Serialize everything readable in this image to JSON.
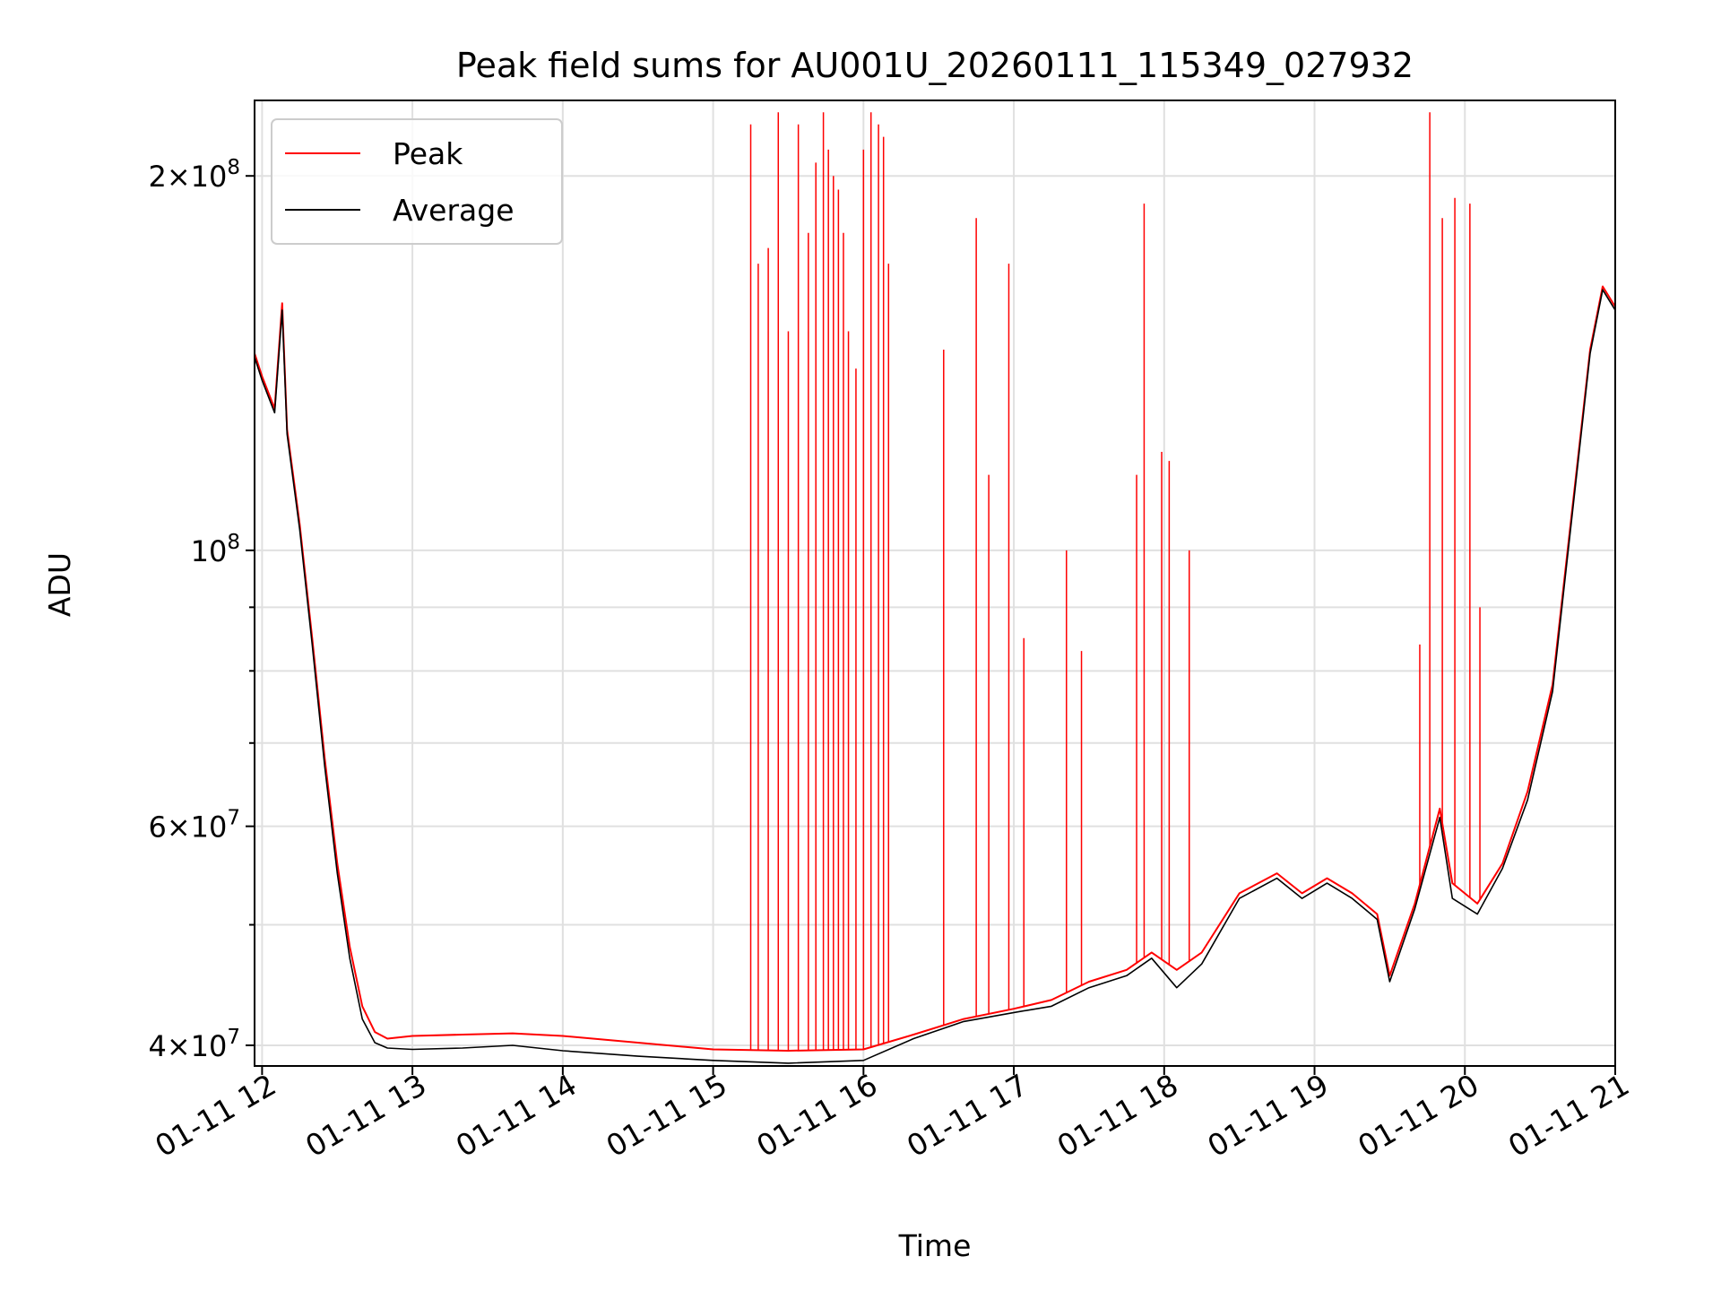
{
  "chart_data": {
    "type": "line",
    "title": "Peak field sums for AU001U_20260111_115349_027932",
    "xlabel": "Time",
    "ylabel": "ADU",
    "y_scale": "log",
    "ylim": [
      38500000,
      230000000
    ],
    "xlim": [
      "2026-01-11 11:57",
      "2026-01-11 21:00"
    ],
    "x_tick_labels": [
      "01-11 12",
      "01-11 13",
      "01-11 14",
      "01-11 15",
      "01-11 16",
      "01-11 17",
      "01-11 18",
      "01-11 19",
      "01-11 20",
      "01-11 21"
    ],
    "x_tick_values": [
      "2026-01-11 12:00",
      "2026-01-11 13:00",
      "2026-01-11 14:00",
      "2026-01-11 15:00",
      "2026-01-11 16:00",
      "2026-01-11 17:00",
      "2026-01-11 18:00",
      "2026-01-11 19:00",
      "2026-01-11 20:00",
      "2026-01-11 21:00"
    ],
    "y_major_ticks": [
      {
        "value": 40000000,
        "mantissa": "4",
        "exponent": "7"
      },
      {
        "value": 60000000,
        "mantissa": "6",
        "exponent": "7"
      },
      {
        "value": 100000000,
        "mantissa": "",
        "exponent": "8"
      },
      {
        "value": 200000000,
        "mantissa": "2",
        "exponent": "8"
      }
    ],
    "y_minor_ticks": [
      50000000,
      70000000,
      80000000,
      90000000
    ],
    "grid": true,
    "legend_position": "upper left",
    "series": [
      {
        "name": "Peak",
        "color": "#ff0000",
        "style": "line",
        "x": [
          "2026-01-11 11:57",
          "2026-01-11 12:00",
          "2026-01-11 12:05",
          "2026-01-11 12:08",
          "2026-01-11 12:10",
          "2026-01-11 12:15",
          "2026-01-11 12:20",
          "2026-01-11 12:25",
          "2026-01-11 12:30",
          "2026-01-11 12:35",
          "2026-01-11 12:40",
          "2026-01-11 12:45",
          "2026-01-11 12:50",
          "2026-01-11 13:00",
          "2026-01-11 13:20",
          "2026-01-11 13:40",
          "2026-01-11 14:00",
          "2026-01-11 14:30",
          "2026-01-11 15:00",
          "2026-01-11 15:30",
          "2026-01-11 16:00",
          "2026-01-11 16:20",
          "2026-01-11 16:40",
          "2026-01-11 17:00",
          "2026-01-11 17:15",
          "2026-01-11 17:30",
          "2026-01-11 17:45",
          "2026-01-11 17:55",
          "2026-01-11 18:05",
          "2026-01-11 18:15",
          "2026-01-11 18:30",
          "2026-01-11 18:45",
          "2026-01-11 18:55",
          "2026-01-11 19:05",
          "2026-01-11 19:15",
          "2026-01-11 19:25",
          "2026-01-11 19:30",
          "2026-01-11 19:40",
          "2026-01-11 19:50",
          "2026-01-11 19:55",
          "2026-01-11 20:05",
          "2026-01-11 20:15",
          "2026-01-11 20:25",
          "2026-01-11 20:35",
          "2026-01-11 20:40",
          "2026-01-11 20:45",
          "2026-01-11 20:50",
          "2026-01-11 20:55",
          "2026-01-11 21:00"
        ],
        "y": [
          144000000,
          138000000,
          130000000,
          158000000,
          125000000,
          105000000,
          85000000,
          68000000,
          56000000,
          48000000,
          43000000,
          41000000,
          40500000,
          40700000,
          40800000,
          40900000,
          40700000,
          40200000,
          39700000,
          39600000,
          39700000,
          40800000,
          42000000,
          42800000,
          43500000,
          45000000,
          46000000,
          47500000,
          46000000,
          47500000,
          53000000,
          55000000,
          53000000,
          54500000,
          53000000,
          51000000,
          45500000,
          52000000,
          62000000,
          54000000,
          52000000,
          56000000,
          64000000,
          78000000,
          96000000,
          118000000,
          145000000,
          163000000,
          157000000
        ]
      },
      {
        "name": "Average",
        "color": "#000000",
        "style": "line",
        "x": [
          "2026-01-11 11:57",
          "2026-01-11 12:00",
          "2026-01-11 12:05",
          "2026-01-11 12:08",
          "2026-01-11 12:10",
          "2026-01-11 12:15",
          "2026-01-11 12:20",
          "2026-01-11 12:25",
          "2026-01-11 12:30",
          "2026-01-11 12:35",
          "2026-01-11 12:40",
          "2026-01-11 12:45",
          "2026-01-11 12:50",
          "2026-01-11 13:00",
          "2026-01-11 13:20",
          "2026-01-11 13:40",
          "2026-01-11 14:00",
          "2026-01-11 14:30",
          "2026-01-11 15:00",
          "2026-01-11 15:30",
          "2026-01-11 16:00",
          "2026-01-11 16:20",
          "2026-01-11 16:40",
          "2026-01-11 17:00",
          "2026-01-11 17:15",
          "2026-01-11 17:30",
          "2026-01-11 17:45",
          "2026-01-11 17:55",
          "2026-01-11 18:05",
          "2026-01-11 18:15",
          "2026-01-11 18:30",
          "2026-01-11 18:45",
          "2026-01-11 18:55",
          "2026-01-11 19:05",
          "2026-01-11 19:15",
          "2026-01-11 19:25",
          "2026-01-11 19:30",
          "2026-01-11 19:40",
          "2026-01-11 19:50",
          "2026-01-11 19:55",
          "2026-01-11 20:05",
          "2026-01-11 20:15",
          "2026-01-11 20:25",
          "2026-01-11 20:35",
          "2026-01-11 20:40",
          "2026-01-11 20:45",
          "2026-01-11 20:50",
          "2026-01-11 20:55",
          "2026-01-11 21:00"
        ],
        "y": [
          143000000,
          137000000,
          129000000,
          156000000,
          124000000,
          104000000,
          84000000,
          67000000,
          55000000,
          47000000,
          42000000,
          40200000,
          39800000,
          39700000,
          39800000,
          40000000,
          39600000,
          39200000,
          38900000,
          38700000,
          38900000,
          40500000,
          41800000,
          42500000,
          43000000,
          44500000,
          45500000,
          47000000,
          44500000,
          46500000,
          52500000,
          54500000,
          52500000,
          54000000,
          52500000,
          50500000,
          45000000,
          51500000,
          61000000,
          52500000,
          51000000,
          55500000,
          63000000,
          77000000,
          95000000,
          117000000,
          144000000,
          162000000,
          156000000
        ]
      }
    ],
    "spikes": {
      "series": "Peak",
      "x": [
        "2026-01-11 15:15",
        "2026-01-11 15:18",
        "2026-01-11 15:22",
        "2026-01-11 15:26",
        "2026-01-11 15:30",
        "2026-01-11 15:34",
        "2026-01-11 15:38",
        "2026-01-11 15:41",
        "2026-01-11 15:44",
        "2026-01-11 15:46",
        "2026-01-11 15:48",
        "2026-01-11 15:50",
        "2026-01-11 15:52",
        "2026-01-11 15:54",
        "2026-01-11 15:57",
        "2026-01-11 16:00",
        "2026-01-11 16:03",
        "2026-01-11 16:06",
        "2026-01-11 16:08",
        "2026-01-11 16:10",
        "2026-01-11 16:32",
        "2026-01-11 16:45",
        "2026-01-11 16:50",
        "2026-01-11 16:58",
        "2026-01-11 17:04",
        "2026-01-11 17:21",
        "2026-01-11 17:27",
        "2026-01-11 17:49",
        "2026-01-11 17:52",
        "2026-01-11 17:59",
        "2026-01-11 18:02",
        "2026-01-11 18:10",
        "2026-01-11 19:42",
        "2026-01-11 19:46",
        "2026-01-11 19:51",
        "2026-01-11 19:56",
        "2026-01-11 20:02",
        "2026-01-11 20:06"
      ],
      "y": [
        220000000,
        170000000,
        175000000,
        225000000,
        150000000,
        220000000,
        180000000,
        205000000,
        225000000,
        210000000,
        200000000,
        195000000,
        180000000,
        150000000,
        140000000,
        210000000,
        225000000,
        220000000,
        215000000,
        170000000,
        145000000,
        185000000,
        115000000,
        170000000,
        85000000,
        100000000,
        83000000,
        115000000,
        190000000,
        120000000,
        118000000,
        100000000,
        84000000,
        225000000,
        185000000,
        192000000,
        190000000,
        90000000
      ]
    }
  }
}
